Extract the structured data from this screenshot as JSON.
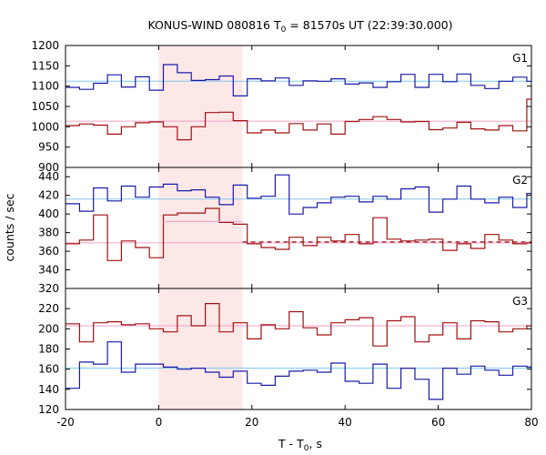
{
  "chart_data": {
    "type": "line",
    "title": "KONUS-WIND 080816 T",
    "title_sub": "0",
    "title_rest": " = 81570s UT (22:39:30.000)",
    "xlabel": "T - T",
    "xlabel_sub": "0",
    "xlabel_rest": ", s",
    "ylabel": "counts / sec",
    "xlim": [
      -20,
      80
    ],
    "xticks": [
      "-20",
      "0",
      "20",
      "40",
      "60",
      "80"
    ],
    "xtick_values": [
      -20,
      0,
      20,
      40,
      60,
      80
    ],
    "highlight": {
      "x_range": [
        0,
        18
      ],
      "color": "#fde8e8"
    },
    "bin_edges": [
      -20,
      -17,
      -14,
      -11,
      -8,
      -5,
      -2,
      1,
      4,
      7,
      10,
      13,
      16,
      19,
      22,
      25,
      28,
      31,
      34,
      37,
      40,
      43,
      46,
      49,
      52,
      55,
      58,
      61,
      64,
      67,
      70,
      73,
      76,
      79,
      80
    ],
    "colors": {
      "blue": "#1a1aa6",
      "red": "#a01010",
      "cyan": "#80c8f0",
      "pink": "#f0a0c8"
    },
    "panels": [
      {
        "name": "G1",
        "ylim": [
          900,
          1200
        ],
        "yticks": [
          "900",
          "950",
          "1000",
          "1050",
          "1100",
          "1150",
          "1200"
        ],
        "ytick_values": [
          900,
          950,
          1000,
          1050,
          1100,
          1150,
          1200
        ],
        "background_levels": [
          {
            "value": 1112,
            "color": "cyan"
          },
          {
            "value": 1014,
            "color": "pink"
          }
        ],
        "series": [
          {
            "color": "blue",
            "values": [
              1097,
              1092,
              1107,
              1128,
              1098,
              1123,
              1090,
              1153,
              1133,
              1114,
              1116,
              1125,
              1076,
              1118,
              1113,
              1120,
              1102,
              1113,
              1112,
              1118,
              1105,
              1108,
              1097,
              1111,
              1129,
              1097,
              1129,
              1111,
              1130,
              1102,
              1094,
              1112,
              1122,
              1112
            ]
          },
          {
            "color": "red",
            "values": [
              1003,
              1007,
              1004,
              982,
              1000,
              1010,
              1012,
              1000,
              968,
              1000,
              1035,
              1036,
              1015,
              985,
              992,
              985,
              1008,
              992,
              1007,
              982,
              1013,
              1018,
              1025,
              1018,
              1012,
              1013,
              993,
              997,
              1011,
              995,
              992,
              1003,
              990,
              1068
            ]
          }
        ]
      },
      {
        "name": "G2",
        "ylim": [
          320,
          450
        ],
        "yticks": [
          "320",
          "340",
          "360",
          "380",
          "400",
          "420",
          "440"
        ],
        "ytick_values": [
          320,
          340,
          360,
          380,
          400,
          420,
          440
        ],
        "background_levels": [
          {
            "value": 416,
            "color": "cyan"
          },
          {
            "value": 369,
            "color": "pink"
          }
        ],
        "series": [
          {
            "color": "blue",
            "values": [
              411,
              403,
              428,
              414,
              430,
              418,
              429,
              432,
              425,
              426,
              418,
              410,
              431,
              417,
              419,
              442,
              400,
              407,
              412,
              418,
              419,
              413,
              419,
              416,
              427,
              429,
              402,
              416,
              430,
              416,
              412,
              418,
              407,
              422
            ]
          },
          {
            "color": "red",
            "values": [
              368,
              372,
              399,
              350,
              371,
              364,
              353,
              399,
              401,
              401,
              406,
              391,
              389,
              368,
              364,
              362,
              375,
              366,
              375,
              371,
              378,
              368,
              396,
              373,
              371,
              372,
              373,
              361,
              368,
              363,
              378,
              372,
              368,
              369
            ]
          },
          {
            "color": "red",
            "dashed": true,
            "x_range": [
              18,
              80
            ],
            "values": [
              370
            ]
          },
          {
            "color": "pink",
            "x_range": [
              1,
              18
            ],
            "values": [
              392
            ]
          }
        ]
      },
      {
        "name": "G3",
        "ylim": [
          120,
          240
        ],
        "yticks": [
          "120",
          "140",
          "160",
          "180",
          "200",
          "220"
        ],
        "ytick_values": [
          120,
          140,
          160,
          180,
          200,
          220
        ],
        "background_levels": [
          {
            "value": 203,
            "color": "pink"
          },
          {
            "value": 161,
            "color": "cyan"
          }
        ],
        "series": [
          {
            "color": "red",
            "values": [
              205,
              187,
              206,
              207,
              204,
              205,
              200,
              197,
              213,
              203,
              225,
              197,
              206,
              190,
              204,
              200,
              217,
              201,
              194,
              206,
              209,
              211,
              183,
              208,
              212,
              187,
              194,
              206,
              190,
              208,
              207,
              197,
              200,
              203
            ]
          },
          {
            "color": "blue",
            "values": [
              141,
              167,
              165,
              187,
              157,
              165,
              165,
              162,
              160,
              161,
              157,
              152,
              158,
              146,
              144,
              153,
              158,
              159,
              157,
              166,
              148,
              146,
              165,
              141,
              161,
              150,
              130,
              161,
              155,
              163,
              159,
              154,
              163,
              162
            ]
          }
        ]
      }
    ]
  }
}
